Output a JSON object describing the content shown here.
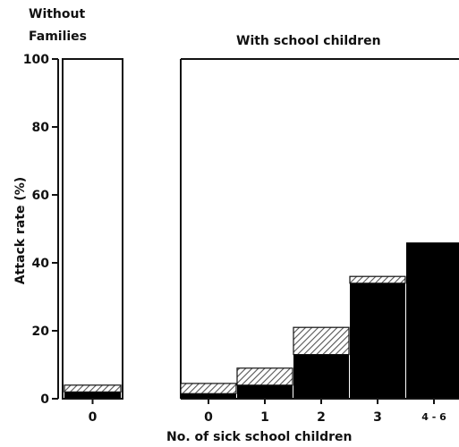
{
  "chart_data": [
    {
      "type": "bar",
      "title": "Without Families",
      "title_lines": [
        "Without",
        "Families"
      ],
      "categories": [
        "0"
      ],
      "series": [
        {
          "values": [
            2
          ],
          "fill": "#000000"
        },
        {
          "values": [
            2
          ],
          "fill": "hatched"
        }
      ],
      "ylabel": "Attack rate   (%)",
      "ylim": [
        0,
        100
      ],
      "yticks": [
        "0",
        "20",
        "40",
        "60",
        "80",
        "100"
      ],
      "grid": false
    },
    {
      "type": "bar",
      "title": "With school children",
      "categories": [
        "0",
        "1",
        "2",
        "3",
        "4 - 6"
      ],
      "series": [
        {
          "values": [
            1.5,
            4,
            13,
            34,
            46
          ],
          "fill": "#000000"
        },
        {
          "values": [
            3,
            5,
            8,
            2,
            0
          ],
          "fill": "hatched"
        }
      ],
      "xlabel": "No. of sick school children",
      "ylim": [
        0,
        100
      ],
      "grid": false
    }
  ],
  "colors": {
    "solid": "#000000",
    "hatch": "#555555",
    "background": "#ffffff"
  }
}
